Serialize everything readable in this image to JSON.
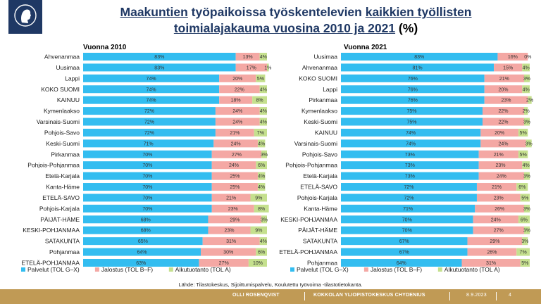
{
  "title": {
    "part1": "Maakuntien",
    "part2": " työpaikoissa työskentelevien ",
    "part3": "kaikkien työllisten",
    "part4": "toimialajakauma",
    "part5": " vuosina 2010 ja 2021",
    "part6": " (%)"
  },
  "source": "Lähde: Tilastokeskus, Sijoittumispalvelu, Koulutettu työvoima -tilastotietokanta.",
  "footer": {
    "author": "OLLI ROSENQVIST",
    "org": "KOKKOLAN YLIOPISTOKESKUS CHYDENIUS",
    "date": "8.9.2023",
    "page": "4"
  },
  "colors": {
    "palvelut": "#33bdf0",
    "jalostus": "#f4a8a4",
    "alkutuotanto": "#c5e08e",
    "title": "#1f3864",
    "footer": "#c09a55"
  },
  "chart_data": [
    {
      "type": "bar",
      "stacked": true,
      "orientation": "horizontal",
      "title": "Vuonna 2010",
      "xlim": [
        0,
        100
      ],
      "legend_position": "bottom",
      "series_names": [
        "Palvelut (TOL G–X)",
        "Jalostus (TOL B–F)",
        "Alkutuotanto (TOL A)"
      ],
      "rows": [
        {
          "label": "Ahvenanmaa",
          "values": [
            83,
            13,
            4
          ]
        },
        {
          "label": "Uusimaa",
          "values": [
            83,
            17,
            1
          ]
        },
        {
          "label": "Lappi",
          "values": [
            74,
            20,
            5
          ]
        },
        {
          "label": "KOKO SUOMI",
          "values": [
            74,
            22,
            4
          ]
        },
        {
          "label": "KAINUU",
          "values": [
            74,
            18,
            8
          ]
        },
        {
          "label": "Kymenlaakso",
          "values": [
            72,
            24,
            4
          ]
        },
        {
          "label": "Varsinais-Suomi",
          "values": [
            72,
            24,
            4
          ]
        },
        {
          "label": "Pohjois-Savo",
          "values": [
            72,
            21,
            7
          ]
        },
        {
          "label": "Keski-Suomi",
          "values": [
            71,
            24,
            4
          ]
        },
        {
          "label": "Pirkanmaa",
          "values": [
            70,
            27,
            3
          ]
        },
        {
          "label": "Pohjois-Pohjanmaa",
          "values": [
            70,
            24,
            6
          ]
        },
        {
          "label": "Etelä-Karjala",
          "values": [
            70,
            25,
            4
          ]
        },
        {
          "label": "Kanta-Häme",
          "values": [
            70,
            25,
            4
          ]
        },
        {
          "label": "ETELÄ-SAVO",
          "values": [
            70,
            21,
            9
          ]
        },
        {
          "label": "Pohjois-Karjala",
          "values": [
            70,
            23,
            8
          ]
        },
        {
          "label": "PÄIJÄT-HÄME",
          "values": [
            68,
            29,
            3
          ]
        },
        {
          "label": "KESKI-POHJANMAA",
          "values": [
            68,
            23,
            9
          ]
        },
        {
          "label": "SATAKUNTA",
          "values": [
            65,
            31,
            4
          ]
        },
        {
          "label": "Pohjanmaa",
          "values": [
            64,
            30,
            6
          ]
        },
        {
          "label": "ETELÄ-POHJANMAA",
          "values": [
            63,
            27,
            10
          ]
        }
      ]
    },
    {
      "type": "bar",
      "stacked": true,
      "orientation": "horizontal",
      "title": "Vuonna 2021",
      "xlim": [
        0,
        100
      ],
      "legend_position": "bottom",
      "series_names": [
        "Palvelut (TOL G–X)",
        "Jalostus (TOL B–F)",
        "Alkutuotanto (TOL A)"
      ],
      "rows": [
        {
          "label": "Uusimaa",
          "values": [
            83,
            16,
            0
          ]
        },
        {
          "label": "Ahvenanmaa",
          "values": [
            81,
            15,
            4
          ]
        },
        {
          "label": "KOKO SUOMI",
          "values": [
            76,
            21,
            3
          ]
        },
        {
          "label": "Lappi",
          "values": [
            76,
            20,
            4
          ]
        },
        {
          "label": "Pirkanmaa",
          "values": [
            76,
            23,
            2
          ]
        },
        {
          "label": "Kymenlaakso",
          "values": [
            75,
            22,
            2
          ]
        },
        {
          "label": "Keski-Suomi",
          "values": [
            75,
            22,
            3
          ]
        },
        {
          "label": "KAINUU",
          "values": [
            74,
            20,
            5
          ]
        },
        {
          "label": "Varsinais-Suomi",
          "values": [
            74,
            24,
            3
          ]
        },
        {
          "label": "Pohjois-Savo",
          "values": [
            73,
            21,
            5
          ]
        },
        {
          "label": "Pohjois-Pohjanmaa",
          "values": [
            73,
            23,
            4
          ]
        },
        {
          "label": "Etelä-Karjala",
          "values": [
            73,
            24,
            3
          ]
        },
        {
          "label": "ETELÄ-SAVO",
          "values": [
            72,
            21,
            6
          ]
        },
        {
          "label": "Pohjois-Karjala",
          "values": [
            72,
            23,
            5
          ]
        },
        {
          "label": "Kanta-Häme",
          "values": [
            71,
            26,
            3
          ]
        },
        {
          "label": "KESKI-POHJANMAA",
          "values": [
            70,
            24,
            6
          ]
        },
        {
          "label": "PÄIJÄT-HÄME",
          "values": [
            70,
            27,
            3
          ]
        },
        {
          "label": "SATAKUNTA",
          "values": [
            67,
            29,
            3
          ]
        },
        {
          "label": "ETELÄ-POHJANMAA",
          "values": [
            67,
            26,
            7
          ]
        },
        {
          "label": "Pohjanmaa",
          "values": [
            64,
            31,
            5
          ]
        }
      ]
    }
  ]
}
